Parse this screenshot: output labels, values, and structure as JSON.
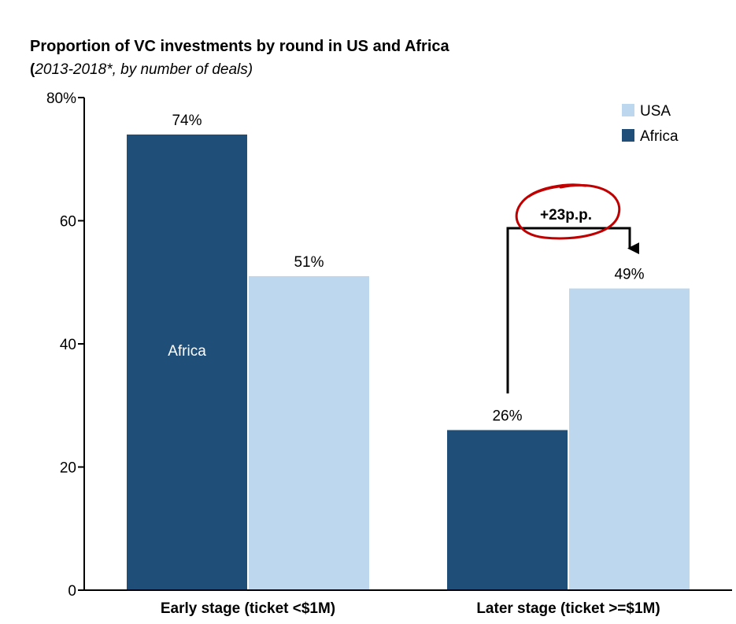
{
  "header": {
    "title": "Proportion of VC investments by round in US and Africa",
    "subtitle_open": "(",
    "subtitle_italic": "2013-2018*, by number of deals)"
  },
  "chart_data": {
    "type": "bar",
    "title": "Proportion of VC investments by round in US and Africa",
    "subtitle": "(2013-2018*, by number of deals)",
    "categories": [
      "Early stage (ticket <$1M)",
      "Later stage (ticket >=$1M)"
    ],
    "series": [
      {
        "name": "Africa",
        "values": [
          74,
          26
        ],
        "labels": [
          "74%",
          "26%"
        ],
        "color": "#1f4e79"
      },
      {
        "name": "USA",
        "values": [
          51,
          49
        ],
        "labels": [
          "51%",
          "49%"
        ],
        "color": "#bdd7ee"
      }
    ],
    "ylim": [
      0,
      80
    ],
    "yticks": [
      0,
      20,
      40,
      60,
      80
    ],
    "ytick_labels": [
      "0",
      "20",
      "40",
      "60",
      "80%"
    ],
    "xlabel": "",
    "ylabel": "",
    "grid": false,
    "legend": {
      "position": "top-right",
      "entries": [
        "USA",
        "Africa"
      ]
    },
    "annotations": {
      "in_bar_label": "Africa",
      "difference_label": "+23p.p."
    },
    "colors": {
      "highlight": "#c00000"
    }
  }
}
